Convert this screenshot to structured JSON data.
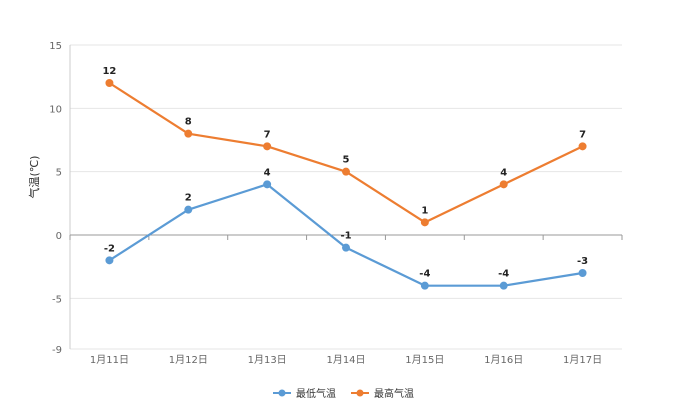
{
  "chart_data": {
    "type": "line",
    "title": "",
    "xlabel": "",
    "ylabel": "气温(℃)",
    "categories": [
      "1月11日",
      "1月12日",
      "1月13日",
      "1月14日",
      "1月15日",
      "1月16日",
      "1月17日"
    ],
    "ylim": [
      -9,
      15
    ],
    "yticks": [
      15,
      10,
      5,
      0,
      -5,
      -9
    ],
    "grid": true,
    "legend_position": "bottom-center",
    "series": [
      {
        "name": "最低气温",
        "color": "#5b9bd5",
        "values": [
          -2,
          2,
          4,
          -1,
          -4,
          -4,
          -3
        ]
      },
      {
        "name": "最高气温",
        "color": "#ed7d31",
        "values": [
          12,
          8,
          7,
          5,
          1,
          4,
          7
        ]
      }
    ]
  }
}
